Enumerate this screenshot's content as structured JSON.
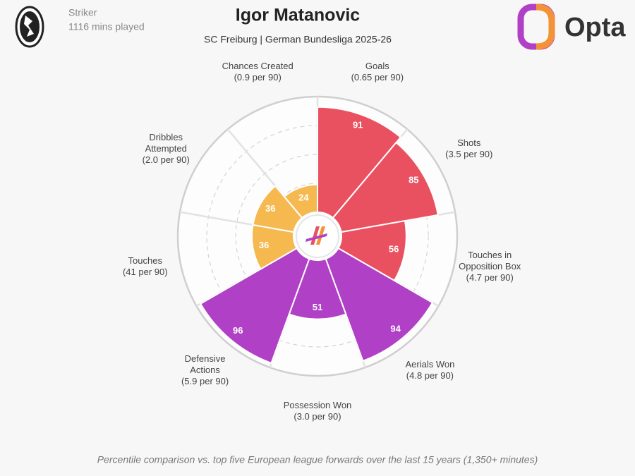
{
  "header": {
    "position": "Striker",
    "minutes": "1116 mins played",
    "brand": "Opta"
  },
  "chart_data": {
    "type": "radial_bar",
    "title": "Igor Matanovic",
    "subtitle": "SC Freiburg | German Bundesliga 2025-26",
    "categories": [
      "Goals",
      "Shots",
      "Touches in\nOpposition Box",
      "Aerials Won",
      "Possession Won",
      "Defensive\nActions",
      "Touches",
      "Dribbles\nAttempted",
      "Chances Created"
    ],
    "per90": [
      "(0.65 per 90)",
      "(3.5 per 90)",
      "(4.7 per 90)",
      "(4.8 per 90)",
      "(3.0 per 90)",
      "(5.9 per 90)",
      "(41 per 90)",
      "(2.0 per 90)",
      "(0.9 per 90)"
    ],
    "values": [
      91,
      85,
      56,
      94,
      51,
      96,
      36,
      36,
      24
    ],
    "colors": [
      "#ea5160",
      "#ea5160",
      "#ea5160",
      "#b040c6",
      "#b040c6",
      "#b040c6",
      "#f5b94f",
      "#f5b94f",
      "#f5b94f"
    ],
    "rlim": [
      0,
      100
    ],
    "rticks": [
      25,
      50,
      75
    ],
    "footnote": "Percentile comparison vs. top five European league forwards over the last 15 years (1,350+ minutes)"
  }
}
